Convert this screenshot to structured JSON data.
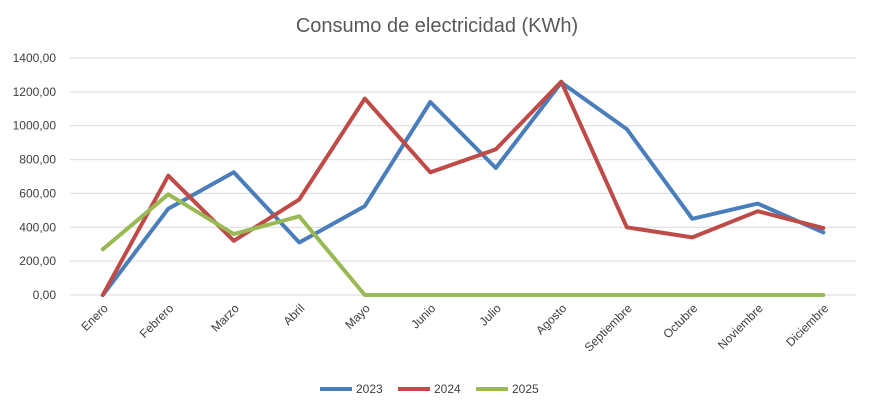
{
  "chart_data": {
    "type": "line",
    "title": "Consumo de electricidad (KWh)",
    "xlabel": "",
    "ylabel": "",
    "categories": [
      "Enero",
      "Febrero",
      "Marzo",
      "Abril",
      "Mayo",
      "Junio",
      "Julio",
      "Agosto",
      "Septiembre",
      "Octubre",
      "Noviembre",
      "Diciembre"
    ],
    "ylim": [
      0,
      1400
    ],
    "yticks": [
      0,
      200,
      400,
      600,
      800,
      1000,
      1200,
      1400
    ],
    "ytick_labels": [
      "0,00",
      "200,00",
      "400,00",
      "600,00",
      "800,00",
      "1000,00",
      "1200,00",
      "1400,00"
    ],
    "grid": true,
    "legend_position": "bottom",
    "series": [
      {
        "name": "2023",
        "color": "#4a7ebb",
        "values": [
          0,
          510,
          725,
          310,
          525,
          1140,
          750,
          1255,
          980,
          450,
          540,
          370
        ]
      },
      {
        "name": "2024",
        "color": "#be4b48",
        "values": [
          0,
          705,
          320,
          565,
          1160,
          725,
          860,
          1260,
          400,
          340,
          495,
          395
        ]
      },
      {
        "name": "2025",
        "color": "#98b954",
        "values": [
          270,
          595,
          360,
          465,
          0,
          0,
          0,
          0,
          0,
          0,
          0,
          0
        ]
      }
    ]
  }
}
